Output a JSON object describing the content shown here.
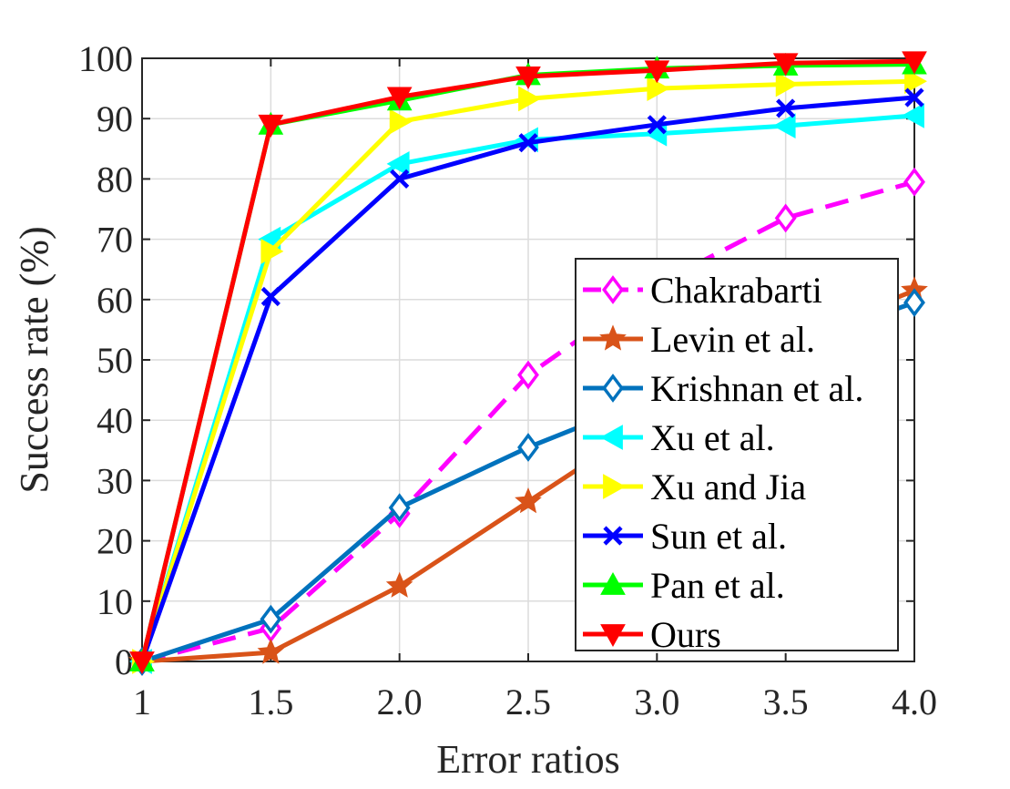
{
  "chart_data": {
    "type": "line",
    "xlabel": "Error ratios",
    "ylabel": "Success rate (%)",
    "x": [
      1,
      1.5,
      2.0,
      2.5,
      3.0,
      3.5,
      4.0
    ],
    "x_tick_labels": [
      "1",
      "1.5",
      "2.0",
      "2.5",
      "3.0",
      "3.5",
      "4.0"
    ],
    "y_ticks": [
      0,
      10,
      20,
      30,
      40,
      50,
      60,
      70,
      80,
      90,
      100
    ],
    "y_tick_labels": [
      "0",
      "10",
      "20",
      "30",
      "40",
      "50",
      "60",
      "70",
      "80",
      "90",
      "100"
    ],
    "xlim": [
      1,
      4
    ],
    "ylim": [
      0,
      100
    ],
    "grid": true,
    "legend_position": "bottom-right",
    "series": [
      {
        "name": "Chakrabarti",
        "color": "#FF00FF",
        "dash": true,
        "marker": "diamond-open",
        "values": [
          0,
          5.5,
          24.5,
          47.5,
          62.5,
          73.5,
          79.5
        ]
      },
      {
        "name": "Levin et al.",
        "color": "#D95319",
        "dash": false,
        "marker": "star",
        "values": [
          0,
          1.5,
          12.5,
          26.5,
          40.5,
          53.0,
          61.5
        ]
      },
      {
        "name": "Krishnan et al.",
        "color": "#0072BD",
        "dash": false,
        "marker": "diamond-open",
        "values": [
          0,
          7.0,
          25.5,
          35.5,
          44.0,
          52.0,
          59.5
        ]
      },
      {
        "name": "Xu et al.",
        "color": "#00FFFF",
        "dash": false,
        "marker": "triangle-left",
        "values": [
          0,
          70.0,
          82.5,
          86.5,
          87.5,
          88.8,
          90.5
        ]
      },
      {
        "name": "Xu and Jia",
        "color": "#FFFF00",
        "dash": false,
        "marker": "triangle-right",
        "values": [
          0,
          68.0,
          89.5,
          93.3,
          95.0,
          95.7,
          96.2
        ]
      },
      {
        "name": "Sun et al.",
        "color": "#0000FF",
        "dash": false,
        "marker": "x",
        "values": [
          0,
          60.5,
          80.0,
          86.0,
          89.0,
          91.7,
          93.5
        ]
      },
      {
        "name": "Pan et al.",
        "color": "#00FF00",
        "dash": false,
        "marker": "triangle-up",
        "values": [
          0,
          89.0,
          93.0,
          97.2,
          98.3,
          98.8,
          99.0
        ]
      },
      {
        "name": "Ours",
        "color": "#FF0000",
        "dash": false,
        "marker": "triangle-down",
        "values": [
          0,
          89.0,
          93.6,
          97.0,
          98.0,
          99.2,
          99.5
        ]
      }
    ]
  }
}
